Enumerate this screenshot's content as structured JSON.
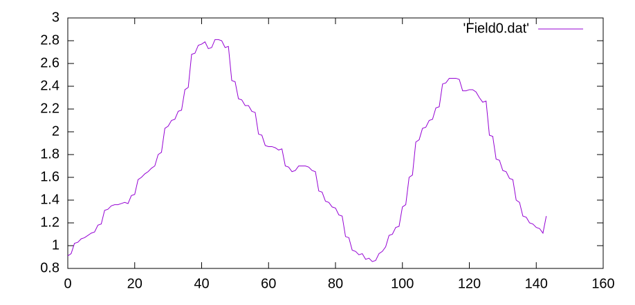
{
  "chart_data": {
    "type": "line",
    "x": [
      0,
      1,
      2,
      3,
      4,
      5,
      6,
      7,
      8,
      9,
      10,
      11,
      12,
      13,
      14,
      15,
      16,
      17,
      18,
      19,
      20,
      21,
      22,
      23,
      24,
      25,
      26,
      27,
      28,
      29,
      30,
      31,
      32,
      33,
      34,
      35,
      36,
      37,
      38,
      39,
      40,
      41,
      42,
      43,
      44,
      45,
      46,
      47,
      48,
      49,
      50,
      51,
      52,
      53,
      54,
      55,
      56,
      57,
      58,
      59,
      60,
      61,
      62,
      63,
      64,
      65,
      66,
      67,
      68,
      69,
      70,
      71,
      72,
      73,
      74,
      75,
      76,
      77,
      78,
      79,
      80,
      81,
      82,
      83,
      84,
      85,
      86,
      87,
      88,
      89,
      90,
      91,
      92,
      93,
      94,
      95,
      96,
      97,
      98,
      99,
      100,
      101,
      102,
      103,
      104,
      105,
      106,
      107,
      108,
      109,
      110,
      111,
      112,
      113,
      114,
      115,
      116,
      117,
      118,
      119,
      120,
      121,
      122,
      123,
      124,
      125,
      126,
      127,
      128,
      129,
      130,
      131,
      132,
      133,
      134,
      135,
      136,
      137,
      138,
      139,
      140,
      141,
      142,
      143
    ],
    "series": [
      {
        "name": "'Field0.dat'",
        "color": "#9400d3",
        "values": [
          0.91,
          0.93,
          1.02,
          1.03,
          1.06,
          1.07,
          1.09,
          1.11,
          1.12,
          1.18,
          1.19,
          1.31,
          1.32,
          1.35,
          1.36,
          1.36,
          1.37,
          1.38,
          1.37,
          1.44,
          1.45,
          1.58,
          1.6,
          1.63,
          1.65,
          1.68,
          1.7,
          1.8,
          1.82,
          2.03,
          2.05,
          2.1,
          2.11,
          2.18,
          2.19,
          2.37,
          2.39,
          2.68,
          2.69,
          2.76,
          2.77,
          2.79,
          2.73,
          2.74,
          2.81,
          2.81,
          2.8,
          2.74,
          2.75,
          2.45,
          2.44,
          2.29,
          2.28,
          2.23,
          2.23,
          2.18,
          2.17,
          1.98,
          1.97,
          1.88,
          1.87,
          1.87,
          1.86,
          1.84,
          1.85,
          1.7,
          1.69,
          1.65,
          1.66,
          1.7,
          1.7,
          1.7,
          1.69,
          1.66,
          1.65,
          1.48,
          1.47,
          1.39,
          1.38,
          1.34,
          1.33,
          1.27,
          1.26,
          1.08,
          1.07,
          0.96,
          0.95,
          0.92,
          0.93,
          0.88,
          0.89,
          0.86,
          0.87,
          0.93,
          0.95,
          0.99,
          1.09,
          1.1,
          1.16,
          1.17,
          1.34,
          1.36,
          1.6,
          1.62,
          1.91,
          1.93,
          2.03,
          2.04,
          2.1,
          2.11,
          2.21,
          2.22,
          2.42,
          2.43,
          2.47,
          2.47,
          2.47,
          2.46,
          2.36,
          2.36,
          2.37,
          2.37,
          2.35,
          2.3,
          2.26,
          2.27,
          1.97,
          1.96,
          1.76,
          1.75,
          1.66,
          1.65,
          1.59,
          1.58,
          1.4,
          1.38,
          1.26,
          1.25,
          1.2,
          1.19,
          1.16,
          1.15,
          1.11,
          1.26
        ]
      }
    ],
    "xlim": [
      0,
      160
    ],
    "xticks": [
      0,
      20,
      40,
      60,
      80,
      100,
      120,
      140,
      160
    ],
    "ylim": [
      0.8,
      3
    ],
    "yticks": [
      0.8,
      1,
      1.2,
      1.4,
      1.6,
      1.8,
      2,
      2.2,
      2.4,
      2.6,
      2.8,
      3
    ],
    "legend": "top-right"
  }
}
